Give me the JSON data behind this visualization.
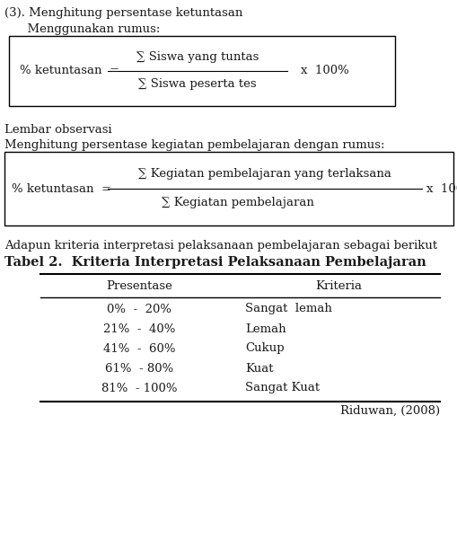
{
  "title_text": "Tabel 2.  Kriteria Interpretasi Pelaksanaan Pembelajaran",
  "col_headers": [
    "Presentase",
    "Kriteria"
  ],
  "rows": [
    [
      "0%  -  20%",
      "Sangat  lemah"
    ],
    [
      "21%  -  40%",
      "Lemah"
    ],
    [
      "41%  -  60%",
      "Cukup"
    ],
    [
      "61%  - 80%",
      "Kuat"
    ],
    [
      "81%  - 100%",
      "Sangat Kuat"
    ]
  ],
  "citation": "Riduwan, (2008)",
  "intro_text1": "(3). Menghitung persentase ketuntasan",
  "intro_text2": "      Menggunakan rumus:",
  "intro_text3": "Lembar observasi",
  "intro_text4": "Menghitung persentase kegiatan pembelajaran dengan rumus:",
  "intro_text5": "Adapun kriteria interpretasi pelaksanaan pembelajaran sebagai berikut",
  "bg_color": "#ffffff",
  "text_color": "#1a1a1a",
  "title_fontsize": 10.5,
  "body_fontsize": 9.5,
  "header_fontsize": 9.5
}
